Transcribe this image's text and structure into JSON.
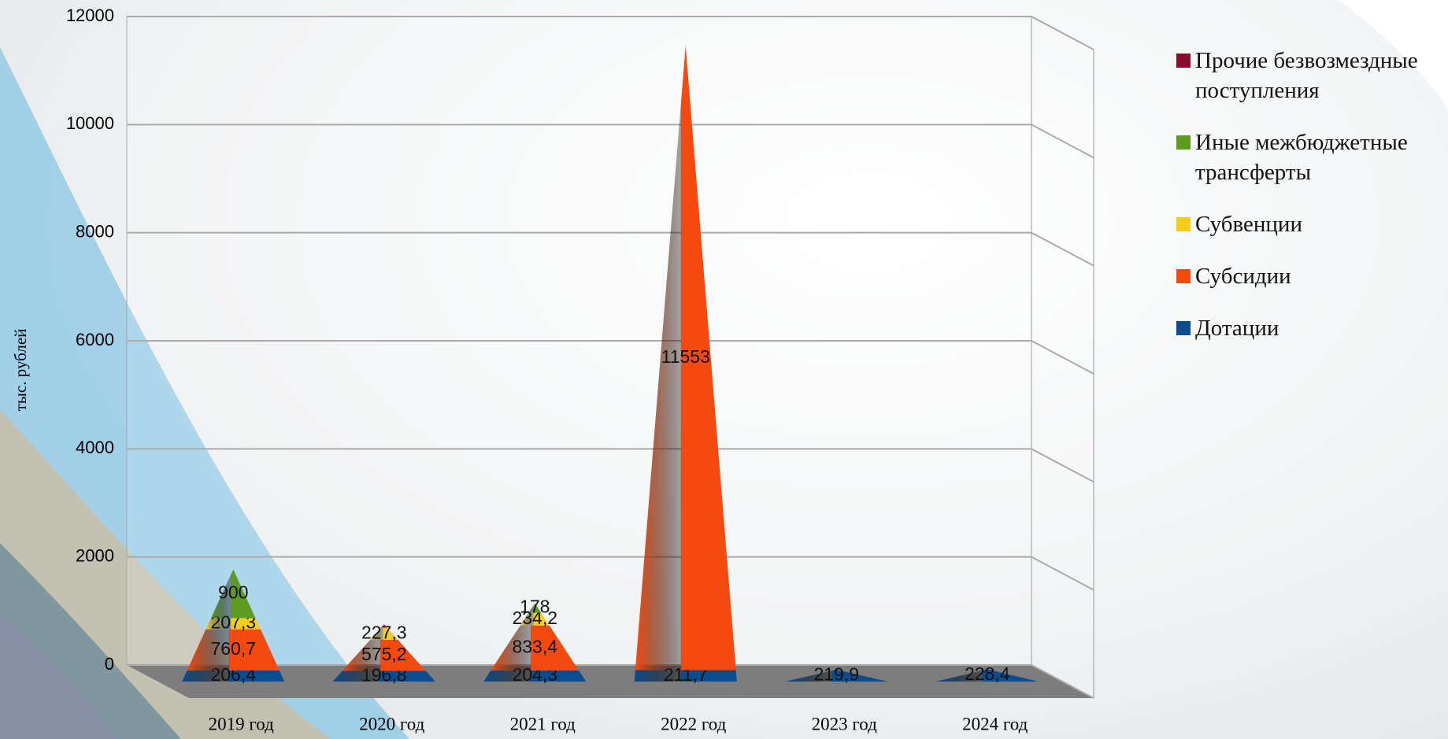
{
  "chart_data": {
    "type": "pyramid",
    "y_label": "тыс. рублей",
    "categories": [
      "2019 год",
      "2020 год",
      "2021 год",
      "2022 год",
      "2023 год",
      "2024 год"
    ],
    "series": [
      {
        "name": "Дотации",
        "color": "#0d4c8c",
        "values": [
          206.4,
          196.8,
          204.3,
          211.7,
          219.9,
          228.4
        ],
        "value_labels": [
          "206,4",
          "196,8",
          "204,3",
          "211,7",
          "219,9",
          "228,4"
        ]
      },
      {
        "name": "Субсидии",
        "color": "#f44a10",
        "values": [
          760.7,
          575.2,
          833.4,
          11553,
          null,
          null
        ],
        "value_labels": [
          "760,7",
          "575,2",
          "833,4",
          "11553",
          null,
          null
        ]
      },
      {
        "name": "Субвенции",
        "color": "#f6cd1c",
        "values": [
          207.3,
          227.3,
          234.2,
          null,
          null,
          null
        ],
        "value_labels": [
          "207,3",
          "227,3",
          "234,2",
          null,
          null,
          null
        ]
      },
      {
        "name": "Иные межбюджетные трансферты",
        "color": "#5d9c20",
        "values": [
          900,
          null,
          178,
          null,
          null,
          null
        ],
        "value_labels": [
          "900",
          null,
          "178",
          null,
          null,
          null
        ]
      },
      {
        "name": "Прочие безвозмездные поступления",
        "color": "#8a0c2c",
        "values": [
          null,
          60,
          null,
          null,
          null,
          null
        ],
        "value_labels": [
          null,
          null,
          null,
          null,
          null,
          null
        ]
      }
    ],
    "ylim": [
      0,
      12000
    ],
    "yticks": [
      0,
      2000,
      4000,
      6000,
      8000,
      10000,
      12000
    ],
    "grid": true
  }
}
